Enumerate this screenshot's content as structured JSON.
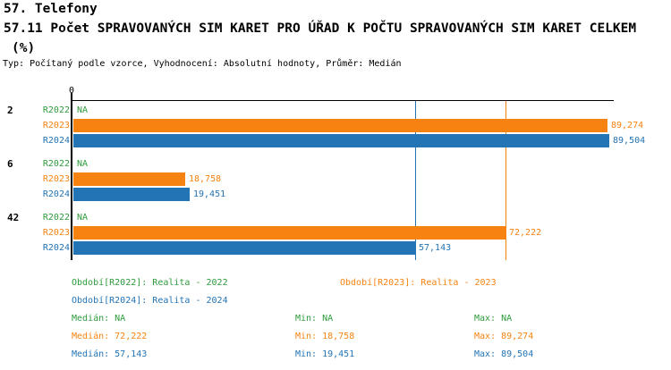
{
  "header": {
    "title_line1": "57. Telefony",
    "title_line2": "57.11 Počet SPRAVOVANÝCH SIM KARET PRO ÚŘAD K POČTU SPRAVOVANÝCH SIM KARET CELKEM",
    "title_line3": "(%)",
    "subtitle": "Typ: Počítaný podle vzorce, Vyhodnocení: Absolutní hodnoty, Průměr: Medián"
  },
  "colors": {
    "r2022": "#2E9B3C",
    "r2023": "#F68311",
    "r2024": "#2374B5",
    "axis": "#000000",
    "background": "#FFFFFF"
  },
  "chart_data": {
    "type": "bar",
    "orientation": "horizontal",
    "title": "57.11 Počet SPRAVOVANÝCH SIM KARET PRO ÚŘAD K POČTU SPRAVOVANÝCH SIM KARET CELKEM (%)",
    "x_axis": {
      "tick_labels": [
        "0"
      ],
      "min": 0,
      "max": 90,
      "grid": false
    },
    "categories": [
      "2",
      "6",
      "42"
    ],
    "series": [
      {
        "name": "R2022",
        "color_key": "r2022",
        "values": [
          null,
          null,
          null
        ],
        "labels": [
          "NA",
          "NA",
          "NA"
        ]
      },
      {
        "name": "R2023",
        "color_key": "r2023",
        "values": [
          89.274,
          18.758,
          72.222
        ],
        "labels": [
          "89,274",
          "18,758",
          "72,222"
        ]
      },
      {
        "name": "R2024",
        "color_key": "r2024",
        "values": [
          89.504,
          19.451,
          57.143
        ],
        "labels": [
          "89,504",
          "19,451",
          "57,143"
        ]
      }
    ],
    "median_lines": [
      {
        "series": "R2023",
        "color_key": "r2023",
        "value": 72.222
      },
      {
        "series": "R2024",
        "color_key": "r2024",
        "value": 57.143
      }
    ]
  },
  "legend": {
    "period_r2022": "Období[R2022]: Realita - 2022",
    "period_r2023": "Období[R2023]: Realita - 2023",
    "period_r2024": "Období[R2024]: Realita - 2024",
    "stats": [
      {
        "series": "R2022",
        "color_key": "r2022",
        "median": "Medián: NA",
        "min": "Min: NA",
        "max": "Max: NA"
      },
      {
        "series": "R2023",
        "color_key": "r2023",
        "median": "Medián: 72,222",
        "min": "Min: 18,758",
        "max": "Max: 89,274"
      },
      {
        "series": "R2024",
        "color_key": "r2024",
        "median": "Medián: 57,143",
        "min": "Min: 19,451",
        "max": "Max: 89,504"
      }
    ]
  }
}
